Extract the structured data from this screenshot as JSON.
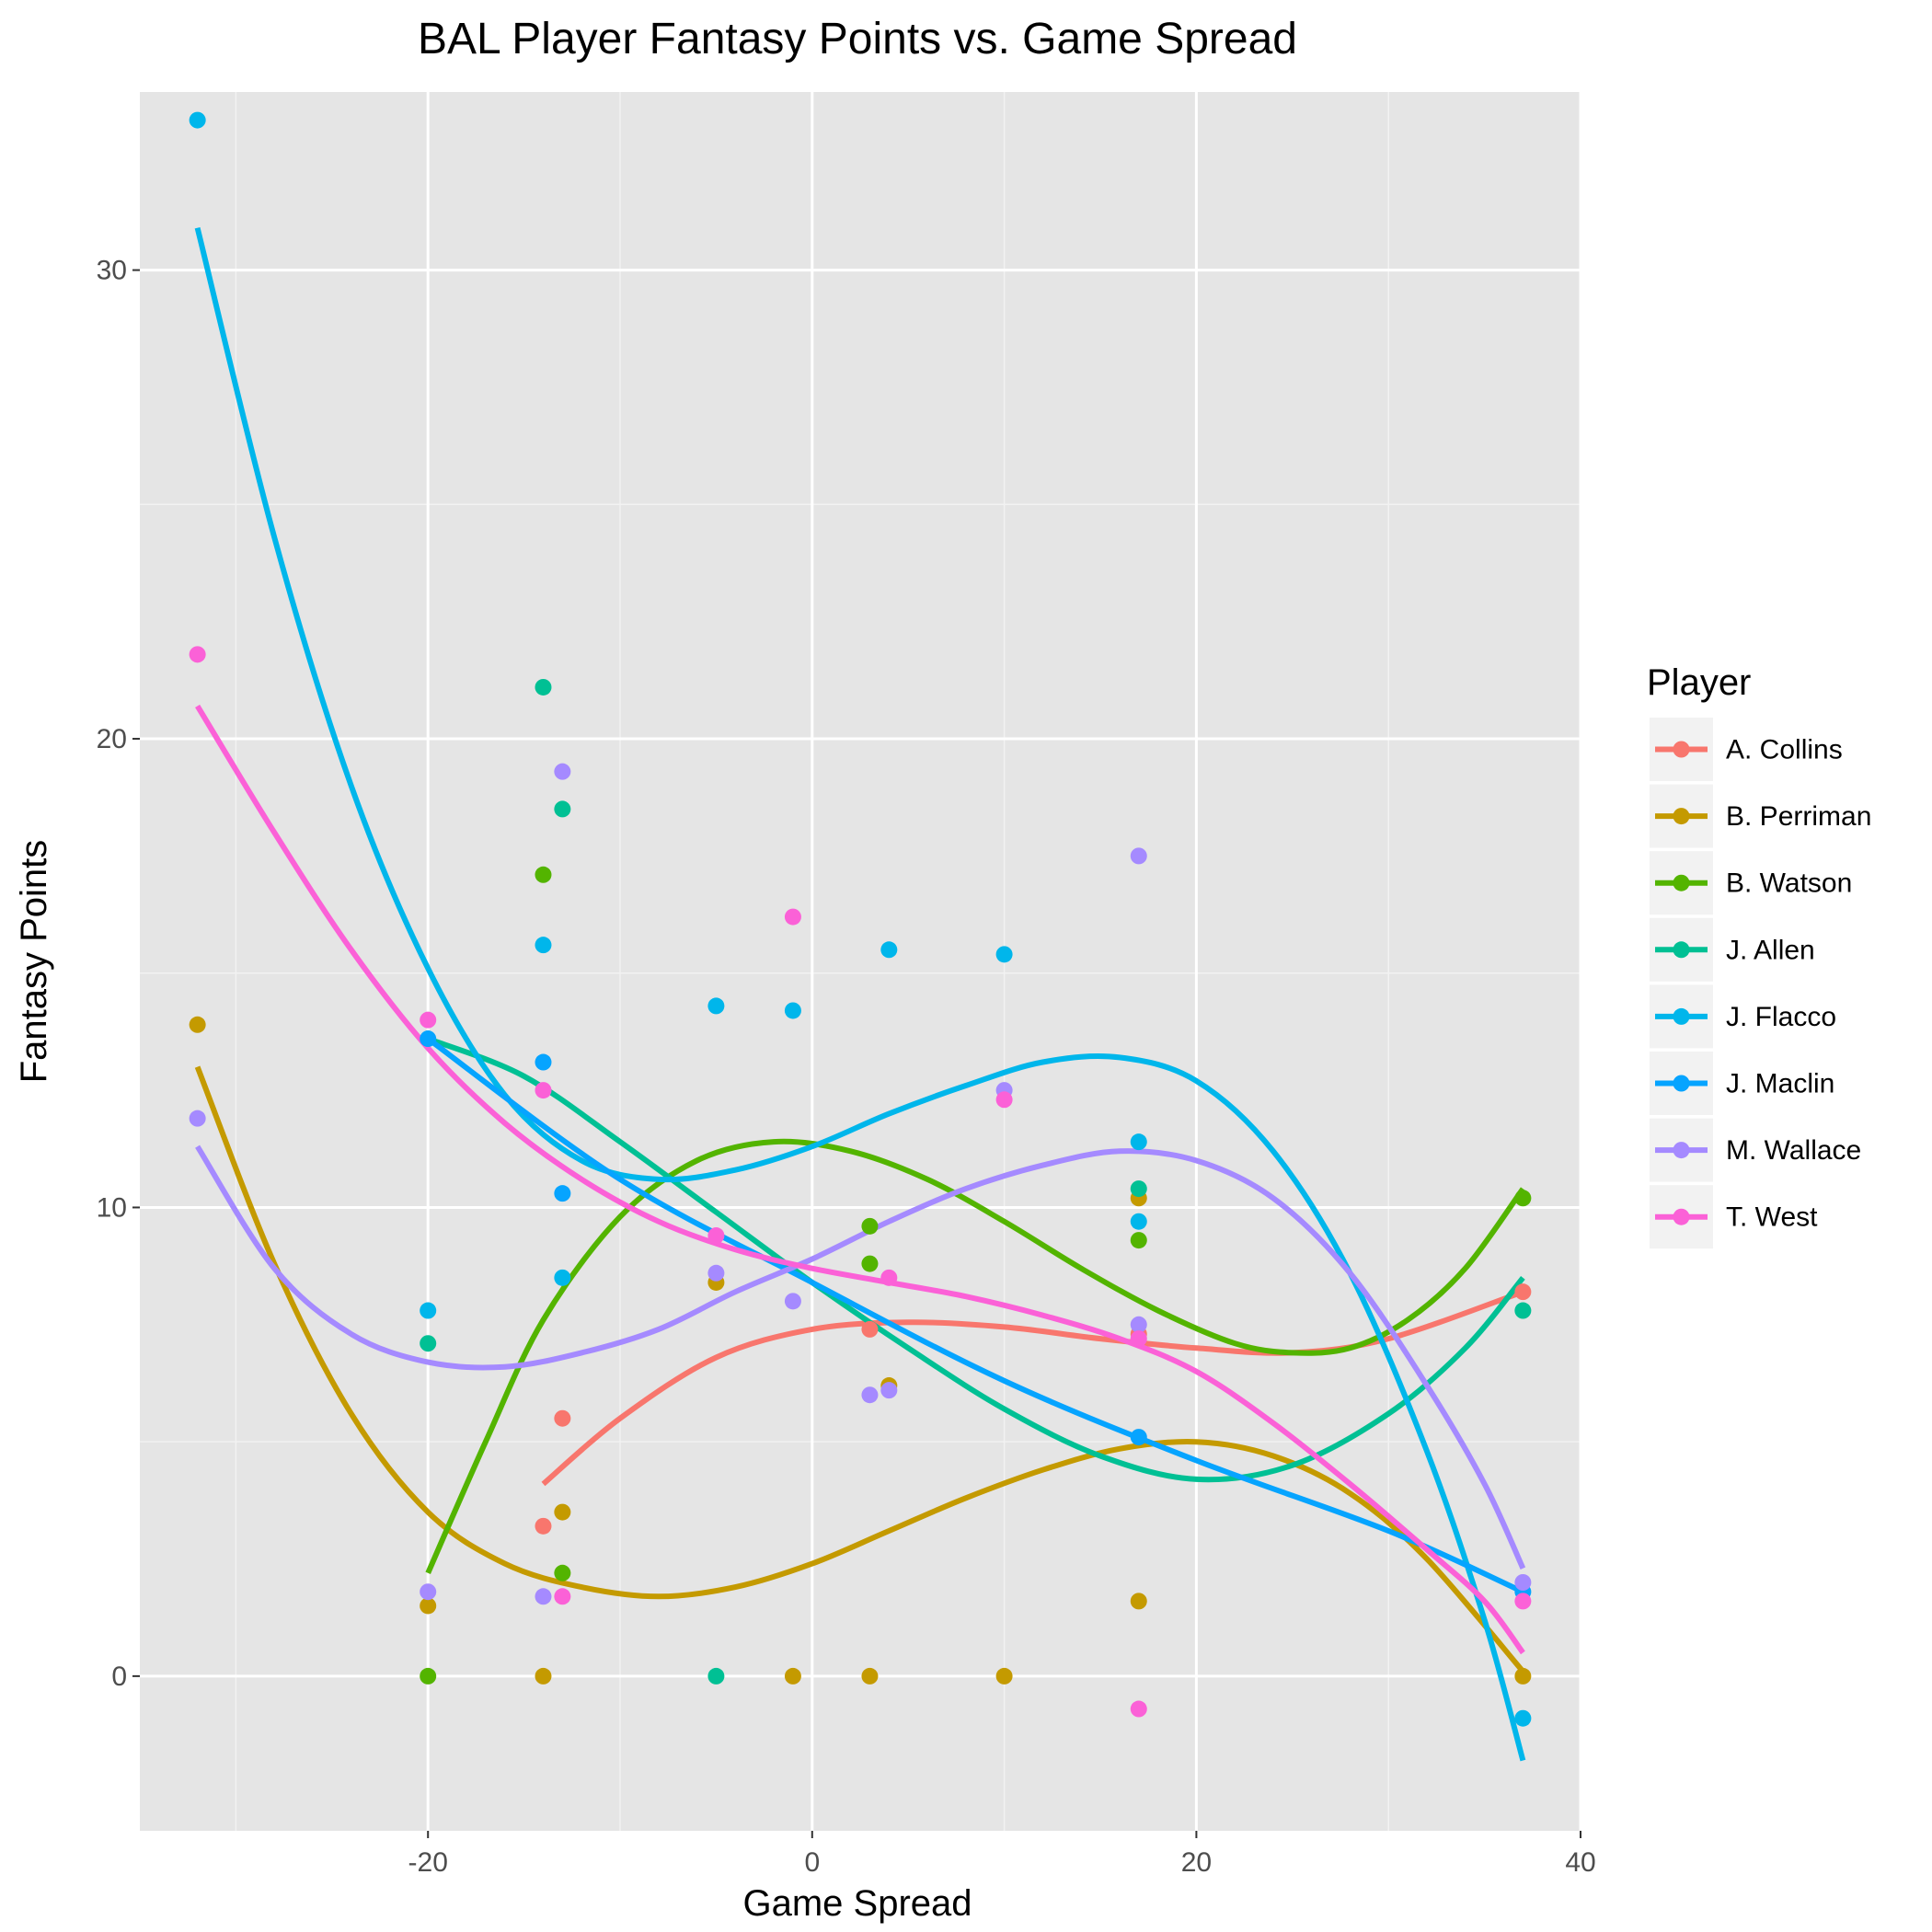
{
  "chart_data": {
    "type": "scatter",
    "title": "BAL Player Fantasy Points vs. Game Spread",
    "xlabel": "Game Spread",
    "ylabel": "Fantasy Points",
    "xlim": [
      -35,
      40
    ],
    "ylim": [
      -3.3,
      33.8
    ],
    "x_ticks": [
      -20,
      0,
      20,
      40
    ],
    "x_tick_labels": [
      "-20",
      "0",
      "20",
      "40"
    ],
    "y_ticks": [
      0,
      10,
      20,
      30
    ],
    "y_tick_labels": [
      "0",
      "10",
      "20",
      "30"
    ],
    "grid": true,
    "background": "#e5e5e5",
    "legend": {
      "title": "Player",
      "position": "right"
    },
    "series": [
      {
        "name": "A. Collins",
        "color": "#f8766d",
        "points": [
          [
            -14,
            3.2
          ],
          [
            -13,
            5.5
          ],
          [
            3,
            7.4
          ],
          [
            17,
            7.3
          ],
          [
            37,
            8.2
          ]
        ],
        "trend": [
          [
            -14,
            4.1
          ],
          [
            -10,
            5.5
          ],
          [
            -5,
            6.8
          ],
          [
            0,
            7.4
          ],
          [
            5,
            7.55
          ],
          [
            10,
            7.45
          ],
          [
            15,
            7.2
          ],
          [
            20,
            7.0
          ],
          [
            25,
            6.9
          ],
          [
            30,
            7.2
          ],
          [
            37,
            8.2
          ]
        ]
      },
      {
        "name": "B. Perriman",
        "color": "#c49a00",
        "points": [
          [
            -32,
            13.9
          ],
          [
            -20,
            1.5
          ],
          [
            -14,
            0
          ],
          [
            -13,
            3.5
          ],
          [
            -5,
            8.4
          ],
          [
            -1,
            0
          ],
          [
            3,
            0
          ],
          [
            4,
            6.2
          ],
          [
            10,
            0
          ],
          [
            17,
            10.2
          ],
          [
            17,
            1.6
          ],
          [
            37,
            0
          ]
        ],
        "trend": [
          [
            -32,
            13.0
          ],
          [
            -28,
            8.8
          ],
          [
            -24,
            5.6
          ],
          [
            -20,
            3.5
          ],
          [
            -16,
            2.4
          ],
          [
            -12,
            1.9
          ],
          [
            -8,
            1.7
          ],
          [
            -4,
            1.9
          ],
          [
            0,
            2.4
          ],
          [
            4,
            3.1
          ],
          [
            8,
            3.8
          ],
          [
            12,
            4.4
          ],
          [
            16,
            4.85
          ],
          [
            20,
            5.0
          ],
          [
            24,
            4.7
          ],
          [
            28,
            3.9
          ],
          [
            32,
            2.5
          ],
          [
            37,
            0.1
          ]
        ]
      },
      {
        "name": "B. Watson",
        "color": "#53b400",
        "points": [
          [
            -20,
            0
          ],
          [
            -14,
            17.1
          ],
          [
            -13,
            2.2
          ],
          [
            3,
            8.8
          ],
          [
            3,
            9.6
          ],
          [
            17,
            9.3
          ],
          [
            37,
            10.2
          ]
        ],
        "trend": [
          [
            -20,
            2.2
          ],
          [
            -17,
            5.0
          ],
          [
            -14,
            7.6
          ],
          [
            -10,
            9.8
          ],
          [
            -6,
            11.0
          ],
          [
            -2,
            11.4
          ],
          [
            2,
            11.2
          ],
          [
            6,
            10.6
          ],
          [
            10,
            9.7
          ],
          [
            14,
            8.7
          ],
          [
            18,
            7.8
          ],
          [
            22,
            7.1
          ],
          [
            25,
            6.9
          ],
          [
            28,
            7.0
          ],
          [
            31,
            7.6
          ],
          [
            34,
            8.7
          ],
          [
            37,
            10.4
          ]
        ]
      },
      {
        "name": "J. Allen",
        "color": "#00c094",
        "points": [
          [
            -20,
            7.1
          ],
          [
            -14,
            21.1
          ],
          [
            -13,
            18.5
          ],
          [
            -5,
            0
          ],
          [
            17,
            10.4
          ],
          [
            37,
            7.8
          ]
        ],
        "trend": [
          [
            -20,
            13.6
          ],
          [
            -15,
            12.8
          ],
          [
            -10,
            11.4
          ],
          [
            -5,
            9.9
          ],
          [
            0,
            8.4
          ],
          [
            5,
            7.0
          ],
          [
            10,
            5.7
          ],
          [
            15,
            4.7
          ],
          [
            20,
            4.2
          ],
          [
            25,
            4.5
          ],
          [
            30,
            5.6
          ],
          [
            34,
            7.0
          ],
          [
            37,
            8.5
          ]
        ]
      },
      {
        "name": "J. Flacco",
        "color": "#00b6eb",
        "points": [
          [
            -32,
            33.2
          ],
          [
            -20,
            7.8
          ],
          [
            -14,
            15.6
          ],
          [
            -13,
            8.5
          ],
          [
            -5,
            14.3
          ],
          [
            -1,
            14.2
          ],
          [
            4,
            15.5
          ],
          [
            10,
            15.4
          ],
          [
            17,
            11.4
          ],
          [
            17,
            9.7
          ],
          [
            37,
            -0.9
          ]
        ],
        "trend": [
          [
            -32,
            30.9
          ],
          [
            -28,
            24.3
          ],
          [
            -24,
            19.0
          ],
          [
            -20,
            15.1
          ],
          [
            -16,
            12.4
          ],
          [
            -12,
            11.0
          ],
          [
            -8,
            10.6
          ],
          [
            -4,
            10.8
          ],
          [
            0,
            11.3
          ],
          [
            4,
            12.0
          ],
          [
            8,
            12.6
          ],
          [
            12,
            13.1
          ],
          [
            16,
            13.2
          ],
          [
            20,
            12.7
          ],
          [
            24,
            11.2
          ],
          [
            28,
            8.6
          ],
          [
            32,
            4.8
          ],
          [
            35,
            1.2
          ],
          [
            37,
            -1.8
          ]
        ]
      },
      {
        "name": "J. Maclin",
        "color": "#06a4ff",
        "points": [
          [
            -20,
            13.6
          ],
          [
            -14,
            13.1
          ],
          [
            -13,
            10.3
          ],
          [
            17,
            5.1
          ],
          [
            37,
            1.8
          ]
        ],
        "trend": [
          [
            -20,
            13.6
          ],
          [
            -10,
            10.6
          ],
          [
            0,
            8.4
          ],
          [
            10,
            6.3
          ],
          [
            20,
            4.6
          ],
          [
            30,
            3.1
          ],
          [
            37,
            1.8
          ]
        ]
      },
      {
        "name": "M. Wallace",
        "color": "#a58aff",
        "points": [
          [
            -32,
            11.9
          ],
          [
            -20,
            1.8
          ],
          [
            -14,
            1.7
          ],
          [
            -13,
            19.3
          ],
          [
            -5,
            8.6
          ],
          [
            -1,
            8.0
          ],
          [
            3,
            6.0
          ],
          [
            4,
            6.1
          ],
          [
            10,
            12.5
          ],
          [
            17,
            17.5
          ],
          [
            17,
            7.5
          ],
          [
            37,
            2.0
          ]
        ],
        "trend": [
          [
            -32,
            11.3
          ],
          [
            -28,
            8.7
          ],
          [
            -24,
            7.3
          ],
          [
            -20,
            6.7
          ],
          [
            -16,
            6.6
          ],
          [
            -12,
            6.9
          ],
          [
            -8,
            7.4
          ],
          [
            -4,
            8.2
          ],
          [
            0,
            8.9
          ],
          [
            4,
            9.7
          ],
          [
            8,
            10.4
          ],
          [
            12,
            10.9
          ],
          [
            16,
            11.2
          ],
          [
            20,
            11.0
          ],
          [
            24,
            10.2
          ],
          [
            28,
            8.6
          ],
          [
            32,
            6.2
          ],
          [
            35,
            4.1
          ],
          [
            37,
            2.3
          ]
        ]
      },
      {
        "name": "T. West",
        "color": "#fb61d7",
        "points": [
          [
            -32,
            21.8
          ],
          [
            -20,
            14.0
          ],
          [
            -14,
            12.5
          ],
          [
            -13,
            1.7
          ],
          [
            -5,
            9.4
          ],
          [
            -1,
            16.2
          ],
          [
            4,
            8.5
          ],
          [
            10,
            12.3
          ],
          [
            17,
            7.2
          ],
          [
            17,
            -0.7
          ],
          [
            37,
            1.6
          ]
        ],
        "trend": [
          [
            -32,
            20.7
          ],
          [
            -28,
            18.0
          ],
          [
            -24,
            15.5
          ],
          [
            -20,
            13.4
          ],
          [
            -16,
            11.8
          ],
          [
            -12,
            10.6
          ],
          [
            -8,
            9.7
          ],
          [
            -4,
            9.1
          ],
          [
            0,
            8.7
          ],
          [
            4,
            8.4
          ],
          [
            8,
            8.1
          ],
          [
            12,
            7.7
          ],
          [
            16,
            7.2
          ],
          [
            20,
            6.5
          ],
          [
            24,
            5.4
          ],
          [
            28,
            4.1
          ],
          [
            32,
            2.7
          ],
          [
            35,
            1.6
          ],
          [
            37,
            0.5
          ]
        ]
      }
    ]
  }
}
